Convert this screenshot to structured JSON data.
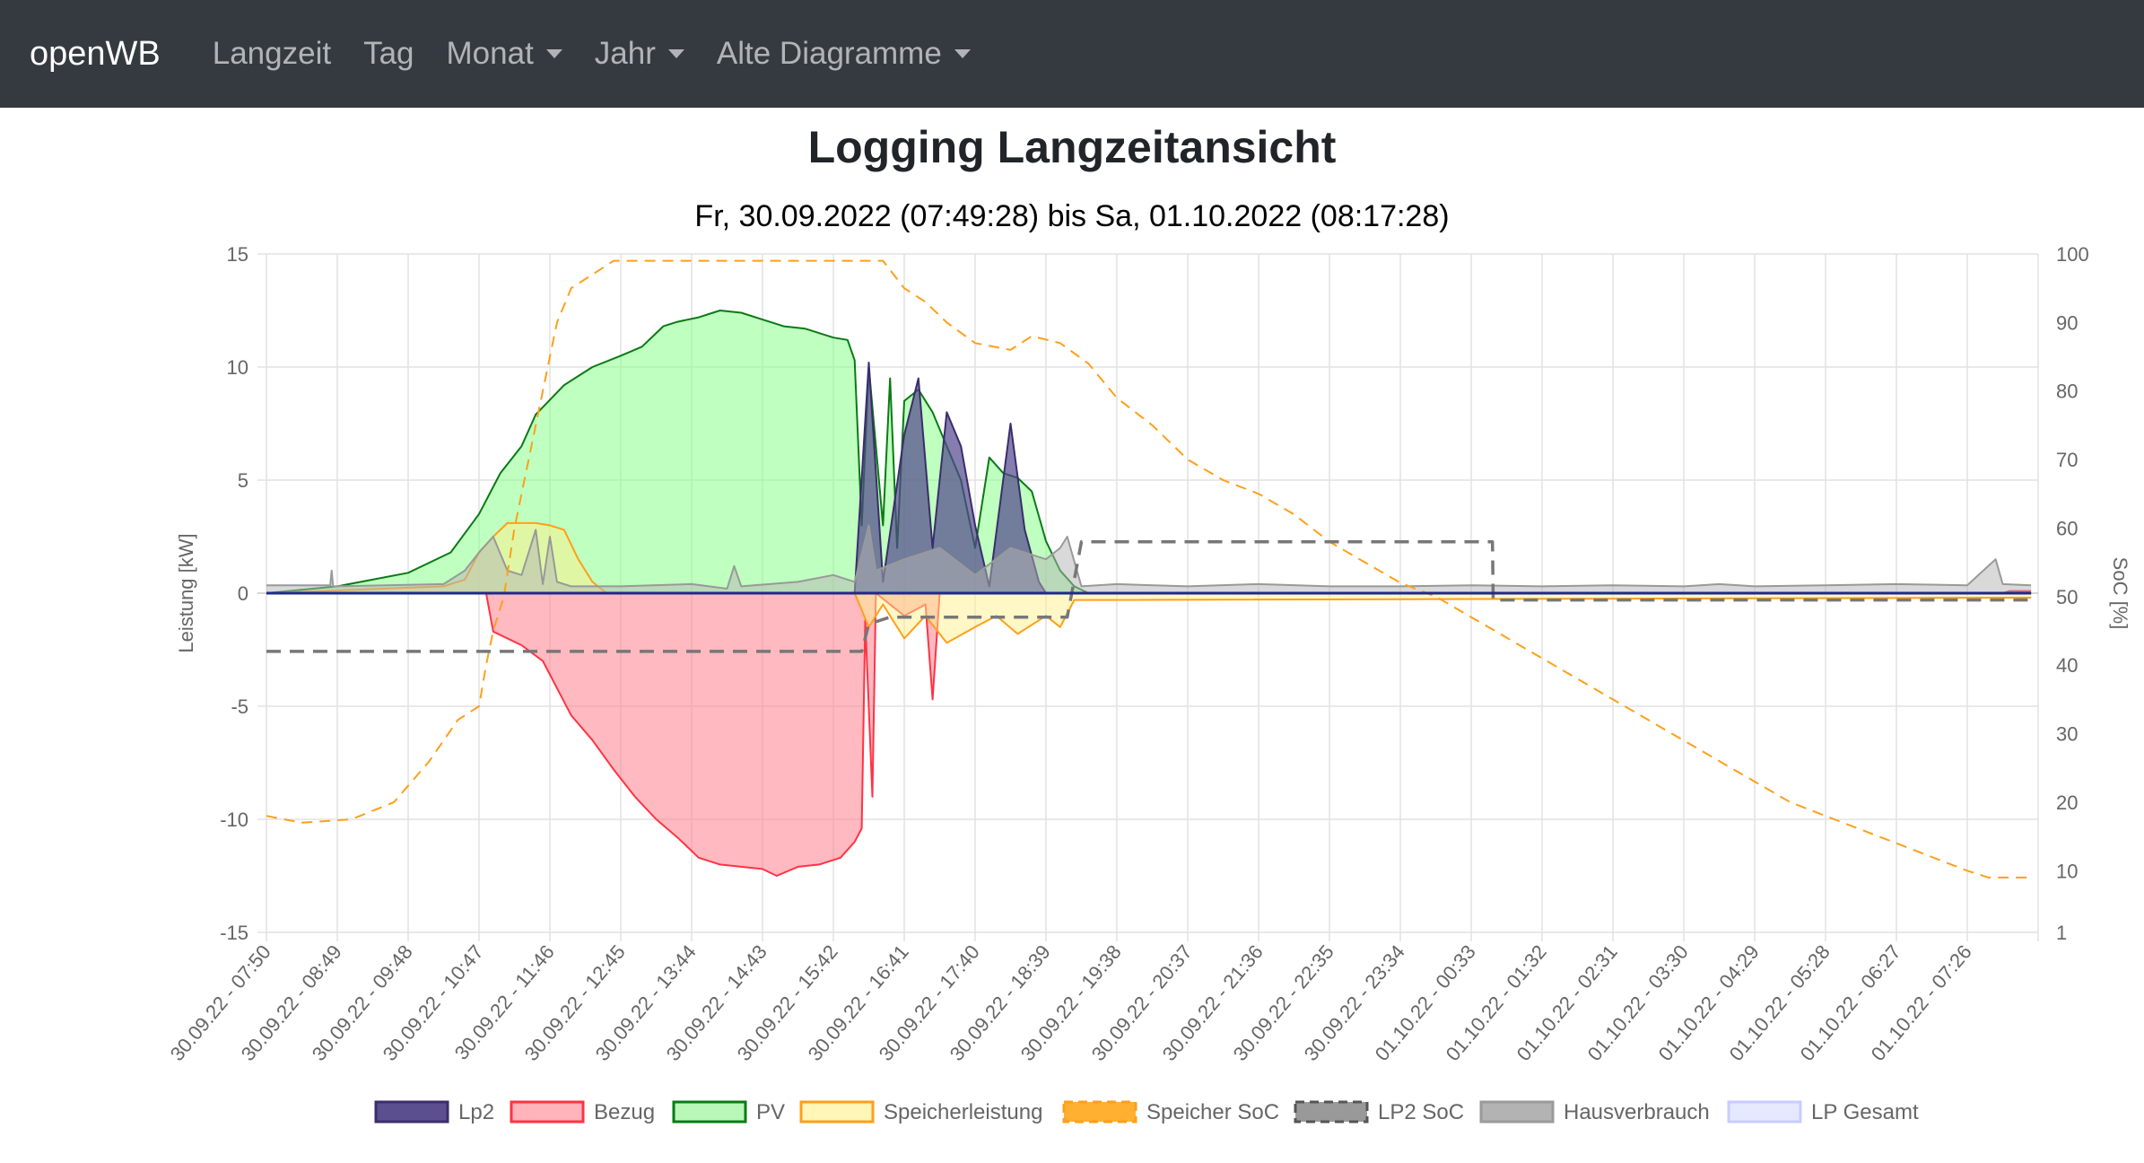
{
  "navbar": {
    "brand": "openWB",
    "items": [
      {
        "label": "Langzeit",
        "dropdown": false
      },
      {
        "label": "Tag",
        "dropdown": false
      },
      {
        "label": "Monat",
        "dropdown": true
      },
      {
        "label": "Jahr",
        "dropdown": true
      },
      {
        "label": "Alte Diagramme",
        "dropdown": true
      }
    ]
  },
  "page": {
    "title": "Logging Langzeitansicht",
    "subtitle": "Fr, 30.09.2022 (07:49:28) bis Sa, 01.10.2022 (08:17:28)"
  },
  "chart_data": {
    "type": "line",
    "grid": true,
    "legend_position": "bottom",
    "y_left": {
      "label": "Leistung [kW]",
      "min": -15,
      "max": 15,
      "ticks": [
        15,
        10,
        5,
        0,
        -5,
        -10,
        -15
      ]
    },
    "y_right": {
      "label": "SoC [%]",
      "min": 1,
      "max": 100,
      "ticks": [
        100,
        90,
        80,
        70,
        60,
        50,
        40,
        30,
        20,
        10,
        1
      ]
    },
    "x_labels": [
      "30.09.22 - 07:50",
      "30.09.22 - 08:49",
      "30.09.22 - 09:48",
      "30.09.22 - 10:47",
      "30.09.22 - 11:46",
      "30.09.22 - 12:45",
      "30.09.22 - 13:44",
      "30.09.22 - 14:43",
      "30.09.22 - 15:42",
      "30.09.22 - 16:41",
      "30.09.22 - 17:40",
      "30.09.22 - 18:39",
      "30.09.22 - 19:38",
      "30.09.22 - 20:37",
      "30.09.22 - 21:36",
      "30.09.22 - 22:35",
      "30.09.22 - 23:34",
      "01.10.22 - 00:33",
      "01.10.22 - 01:32",
      "01.10.22 - 02:31",
      "01.10.22 - 03:30",
      "01.10.22 - 04:29",
      "01.10.22 - 05:28",
      "01.10.22 - 06:27",
      "01.10.22 - 07:26"
    ],
    "series": [
      {
        "name": "Lp2",
        "axis": "left",
        "color": "#3b2d6b",
        "fill": "rgba(80,70,140,0.7)",
        "points": [
          [
            0,
            0
          ],
          [
            8.3,
            0
          ],
          [
            8.5,
            10.2
          ],
          [
            8.7,
            0.5
          ],
          [
            9,
            7
          ],
          [
            9.2,
            9.5
          ],
          [
            9.4,
            2
          ],
          [
            9.6,
            8
          ],
          [
            9.8,
            6.5
          ],
          [
            10,
            3
          ],
          [
            10.2,
            0.3
          ],
          [
            10.5,
            7.5
          ],
          [
            10.7,
            2.8
          ],
          [
            10.9,
            0.5
          ],
          [
            11,
            0
          ],
          [
            24.9,
            0
          ]
        ]
      },
      {
        "name": "Bezug",
        "axis": "left",
        "color": "#ff3344",
        "fill": "rgba(255,128,140,0.55)",
        "points": [
          [
            0,
            0
          ],
          [
            3.1,
            0
          ],
          [
            3.2,
            -1.7
          ],
          [
            3.6,
            -2.3
          ],
          [
            3.9,
            -3
          ],
          [
            4.1,
            -4.2
          ],
          [
            4.3,
            -5.4
          ],
          [
            4.6,
            -6.5
          ],
          [
            4.9,
            -7.8
          ],
          [
            5.2,
            -9
          ],
          [
            5.5,
            -10
          ],
          [
            5.8,
            -10.8
          ],
          [
            6.1,
            -11.7
          ],
          [
            6.4,
            -12
          ],
          [
            6.7,
            -12.1
          ],
          [
            7,
            -12.2
          ],
          [
            7.2,
            -12.5
          ],
          [
            7.5,
            -12.1
          ],
          [
            7.8,
            -12
          ],
          [
            8.1,
            -11.7
          ],
          [
            8.3,
            -11
          ],
          [
            8.4,
            -10.4
          ],
          [
            8.45,
            -1.2
          ],
          [
            8.55,
            -9
          ],
          [
            8.6,
            0
          ],
          [
            9,
            -1
          ],
          [
            9.3,
            -0.5
          ],
          [
            9.4,
            -4.7
          ],
          [
            9.5,
            0
          ],
          [
            24.5,
            0
          ],
          [
            24.6,
            0.1
          ],
          [
            24.9,
            0.1
          ]
        ]
      },
      {
        "name": "PV",
        "axis": "left",
        "color": "#0a7a15",
        "fill": "rgba(128,255,128,0.5)",
        "points": [
          [
            0,
            0
          ],
          [
            1,
            0.3
          ],
          [
            2,
            0.9
          ],
          [
            2.6,
            1.8
          ],
          [
            3,
            3.5
          ],
          [
            3.3,
            5.3
          ],
          [
            3.6,
            6.5
          ],
          [
            3.8,
            7.9
          ],
          [
            4.2,
            9.2
          ],
          [
            4.6,
            10
          ],
          [
            5,
            10.5
          ],
          [
            5.3,
            10.9
          ],
          [
            5.6,
            11.8
          ],
          [
            5.8,
            12
          ],
          [
            6.1,
            12.2
          ],
          [
            6.4,
            12.5
          ],
          [
            6.7,
            12.4
          ],
          [
            7,
            12.1
          ],
          [
            7.3,
            11.8
          ],
          [
            7.6,
            11.7
          ],
          [
            8,
            11.3
          ],
          [
            8.2,
            11.2
          ],
          [
            8.3,
            10.3
          ],
          [
            8.4,
            3
          ],
          [
            8.5,
            10
          ],
          [
            8.7,
            3
          ],
          [
            8.8,
            9.5
          ],
          [
            8.9,
            2
          ],
          [
            9,
            8.5
          ],
          [
            9.2,
            9
          ],
          [
            9.4,
            8
          ],
          [
            9.6,
            6.5
          ],
          [
            9.8,
            5
          ],
          [
            10,
            2
          ],
          [
            10.2,
            6
          ],
          [
            10.4,
            5.3
          ],
          [
            10.6,
            5.1
          ],
          [
            10.8,
            4.5
          ],
          [
            11,
            2.3
          ],
          [
            11.2,
            1
          ],
          [
            11.4,
            0.3
          ],
          [
            11.6,
            0
          ],
          [
            24.9,
            0
          ]
        ]
      },
      {
        "name": "Speicherleistung",
        "axis": "left",
        "color": "#ff9f1a",
        "fill": "rgba(255,240,140,0.5)",
        "points": [
          [
            0,
            0
          ],
          [
            2.5,
            0.3
          ],
          [
            2.8,
            0.6
          ],
          [
            3,
            1.8
          ],
          [
            3.2,
            2.5
          ],
          [
            3.4,
            3.1
          ],
          [
            3.8,
            3.1
          ],
          [
            4,
            3
          ],
          [
            4.2,
            2.8
          ],
          [
            4.4,
            1.5
          ],
          [
            4.6,
            0.5
          ],
          [
            4.8,
            0
          ],
          [
            8.3,
            0
          ],
          [
            8.5,
            -1.5
          ],
          [
            8.7,
            -0.5
          ],
          [
            9,
            -2
          ],
          [
            9.3,
            -1
          ],
          [
            9.6,
            -2.2
          ],
          [
            10,
            -1.5
          ],
          [
            10.3,
            -1
          ],
          [
            10.6,
            -1.8
          ],
          [
            11,
            -1
          ],
          [
            11.2,
            -1.5
          ],
          [
            11.4,
            -0.3
          ],
          [
            11.6,
            -0.3
          ],
          [
            24.9,
            -0.2
          ]
        ]
      },
      {
        "name": "Speicher SoC",
        "axis": "right",
        "color": "#ff9f1a",
        "dash": [
          12,
          8
        ],
        "points": [
          [
            0,
            18
          ],
          [
            0.5,
            17
          ],
          [
            1.2,
            17.5
          ],
          [
            1.8,
            20
          ],
          [
            2.3,
            26
          ],
          [
            2.7,
            32
          ],
          [
            3,
            34
          ],
          [
            3.1,
            40
          ],
          [
            3.2,
            45
          ],
          [
            3.35,
            50
          ],
          [
            3.5,
            60
          ],
          [
            3.7,
            70
          ],
          [
            3.9,
            80
          ],
          [
            4.1,
            90
          ],
          [
            4.3,
            95
          ],
          [
            4.6,
            97
          ],
          [
            4.9,
            99
          ],
          [
            7.5,
            99
          ],
          [
            8.7,
            99
          ],
          [
            9,
            95
          ],
          [
            9.3,
            93
          ],
          [
            9.6,
            90
          ],
          [
            10,
            87
          ],
          [
            10.5,
            86
          ],
          [
            10.8,
            88
          ],
          [
            11.2,
            87
          ],
          [
            11.6,
            84
          ],
          [
            12,
            79
          ],
          [
            12.5,
            75
          ],
          [
            13,
            70
          ],
          [
            13.5,
            67
          ],
          [
            14,
            65
          ],
          [
            14.5,
            62
          ],
          [
            15,
            58
          ],
          [
            15.5,
            55
          ],
          [
            16,
            52
          ],
          [
            16.5,
            50
          ],
          [
            17,
            47
          ],
          [
            17.5,
            44
          ],
          [
            18,
            41
          ],
          [
            18.5,
            38
          ],
          [
            19,
            35
          ],
          [
            19.5,
            32
          ],
          [
            20,
            29
          ],
          [
            20.5,
            26
          ],
          [
            21,
            23
          ],
          [
            21.5,
            20
          ],
          [
            22,
            18
          ],
          [
            22.5,
            16
          ],
          [
            23,
            14
          ],
          [
            23.5,
            12
          ],
          [
            24,
            10
          ],
          [
            24.3,
            9
          ],
          [
            24.9,
            9
          ]
        ]
      },
      {
        "name": "LP2 SoC",
        "axis": "right",
        "color": "#777777",
        "dash": [
          16,
          10
        ],
        "points": [
          [
            0,
            42
          ],
          [
            8.4,
            42
          ],
          [
            8.5,
            46
          ],
          [
            8.8,
            47
          ],
          [
            11.3,
            47
          ],
          [
            11.5,
            58
          ],
          [
            11.7,
            58
          ],
          [
            16.3,
            58
          ],
          [
            17.3,
            58
          ],
          [
            17.31,
            49.5
          ],
          [
            24.9,
            49.5
          ]
        ]
      },
      {
        "name": "Hausverbrauch",
        "axis": "left",
        "color": "#999999",
        "fill": "rgba(180,180,180,0.5)",
        "points": [
          [
            0,
            0.35
          ],
          [
            0.9,
            0.35
          ],
          [
            0.92,
            1
          ],
          [
            0.94,
            0.3
          ],
          [
            2.5,
            0.4
          ],
          [
            2.8,
            1
          ],
          [
            3,
            1.8
          ],
          [
            3.2,
            2.5
          ],
          [
            3.4,
            1
          ],
          [
            3.6,
            0.8
          ],
          [
            3.8,
            2.8
          ],
          [
            3.9,
            0.4
          ],
          [
            4,
            2.5
          ],
          [
            4.1,
            0.5
          ],
          [
            4.3,
            0.3
          ],
          [
            5,
            0.3
          ],
          [
            6,
            0.4
          ],
          [
            6.5,
            0.2
          ],
          [
            6.6,
            1.2
          ],
          [
            6.7,
            0.3
          ],
          [
            7.5,
            0.5
          ],
          [
            8,
            0.8
          ],
          [
            8.3,
            0.5
          ],
          [
            8.5,
            3
          ],
          [
            8.6,
            1
          ],
          [
            9,
            1.5
          ],
          [
            9.5,
            2
          ],
          [
            10,
            0.8
          ],
          [
            10.5,
            2
          ],
          [
            11,
            1.5
          ],
          [
            11.2,
            2
          ],
          [
            11.3,
            2.5
          ],
          [
            11.5,
            0.3
          ],
          [
            12,
            0.4
          ],
          [
            13,
            0.3
          ],
          [
            14,
            0.4
          ],
          [
            15,
            0.3
          ],
          [
            16,
            0.3
          ],
          [
            17,
            0.35
          ],
          [
            18,
            0.3
          ],
          [
            19,
            0.35
          ],
          [
            20,
            0.3
          ],
          [
            20.5,
            0.4
          ],
          [
            21,
            0.3
          ],
          [
            22,
            0.35
          ],
          [
            23,
            0.4
          ],
          [
            24,
            0.35
          ],
          [
            24.4,
            1.5
          ],
          [
            24.5,
            0.4
          ],
          [
            24.9,
            0.35
          ]
        ]
      },
      {
        "name": "LP Gesamt",
        "axis": "left",
        "color": "#1d2a8a",
        "fill": "rgba(200,205,255,0.4)",
        "points": [
          [
            0,
            0
          ],
          [
            24.9,
            0
          ]
        ]
      }
    ]
  }
}
